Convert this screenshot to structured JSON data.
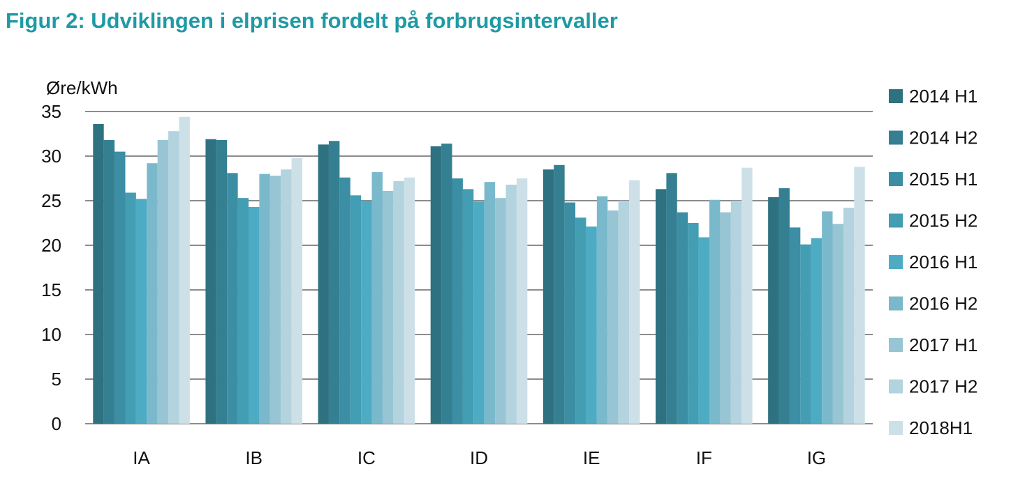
{
  "title": "Figur 2: Udviklingen i elprisen fordelt på forbrugsintervaller",
  "chart_data": {
    "type": "bar",
    "title": "Figur 2: Udviklingen i elprisen fordelt på forbrugsintervaller",
    "ylabel": "Øre/kWh",
    "xlabel": "",
    "ylim": [
      0,
      35
    ],
    "yticks": [
      0,
      5,
      10,
      15,
      20,
      25,
      30,
      35
    ],
    "grid": true,
    "legend_position": "right",
    "categories": [
      "IA",
      "IB",
      "IC",
      "ID",
      "IE",
      "IF",
      "IG"
    ],
    "series": [
      {
        "name": "2014 H1",
        "color": "#2e7181",
        "values": [
          33.6,
          31.9,
          31.3,
          31.1,
          28.5,
          26.3,
          25.4
        ]
      },
      {
        "name": "2014 H2",
        "color": "#357f92",
        "values": [
          31.8,
          31.8,
          31.7,
          31.4,
          29.0,
          28.1,
          26.4
        ]
      },
      {
        "name": "2015 H1",
        "color": "#3b8ea3",
        "values": [
          30.5,
          28.1,
          27.6,
          27.5,
          24.8,
          23.7,
          22.0
        ]
      },
      {
        "name": "2015 H2",
        "color": "#439db3",
        "values": [
          25.9,
          25.3,
          25.6,
          26.3,
          23.1,
          22.5,
          20.1
        ]
      },
      {
        "name": "2016 H1",
        "color": "#4eabc4",
        "values": [
          25.2,
          24.3,
          25.0,
          24.9,
          22.1,
          20.9,
          20.8
        ]
      },
      {
        "name": "2016 H2",
        "color": "#7ab9cc",
        "values": [
          29.2,
          28.0,
          28.2,
          27.1,
          25.5,
          25.1,
          23.8
        ]
      },
      {
        "name": "2017 H1",
        "color": "#97c5d3",
        "values": [
          31.8,
          27.8,
          26.1,
          25.3,
          23.9,
          23.7,
          22.4
        ]
      },
      {
        "name": "2017 H2",
        "color": "#b3d3df",
        "values": [
          32.8,
          28.5,
          27.2,
          26.8,
          25.0,
          25.0,
          24.2
        ]
      },
      {
        "name": "2018H1",
        "color": "#cde0e8",
        "values": [
          34.4,
          29.8,
          27.6,
          27.5,
          27.3,
          28.7,
          28.8
        ]
      }
    ]
  }
}
